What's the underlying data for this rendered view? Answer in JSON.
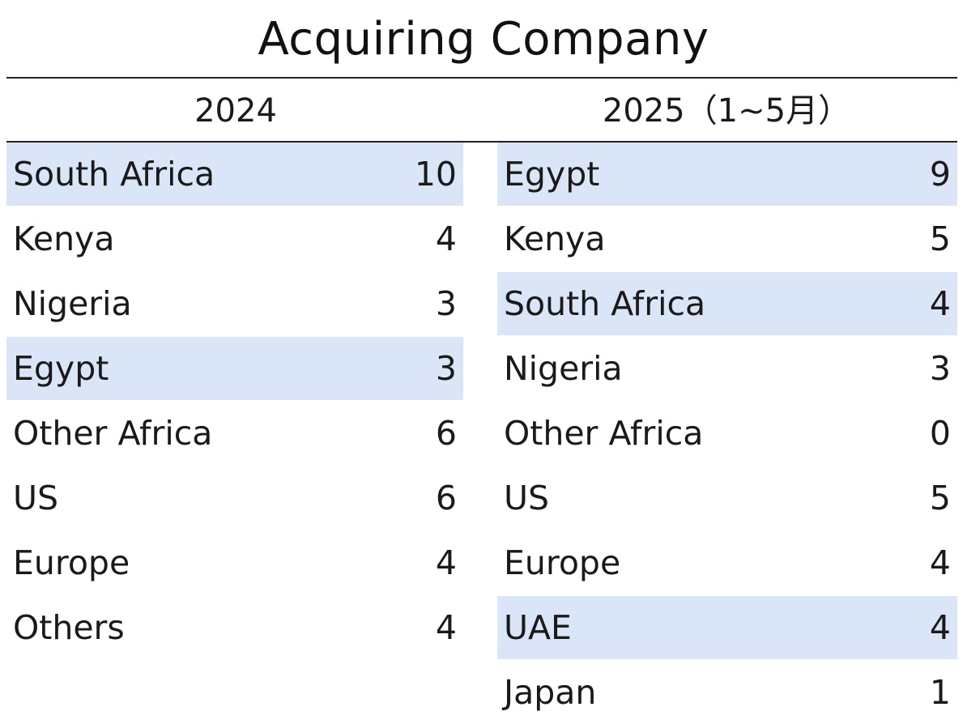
{
  "title": "Acquiring Company",
  "columns": [
    {
      "header": "2024",
      "rows": [
        {
          "name": "South Africa",
          "value": "10",
          "highlight": true
        },
        {
          "name": "Kenya",
          "value": "4",
          "highlight": false
        },
        {
          "name": "Nigeria",
          "value": "3",
          "highlight": false
        },
        {
          "name": "Egypt",
          "value": "3",
          "highlight": true
        },
        {
          "name": "Other Africa",
          "value": "6",
          "highlight": false
        },
        {
          "name": "US",
          "value": "6",
          "highlight": false
        },
        {
          "name": "Europe",
          "value": "4",
          "highlight": false
        },
        {
          "name": "Others",
          "value": "4",
          "highlight": false
        }
      ]
    },
    {
      "header": "2025（1~5月）",
      "rows": [
        {
          "name": "Egypt",
          "value": "9",
          "highlight": true
        },
        {
          "name": "Kenya",
          "value": "5",
          "highlight": false
        },
        {
          "name": "South Africa",
          "value": "4",
          "highlight": true
        },
        {
          "name": "Nigeria",
          "value": "3",
          "highlight": false
        },
        {
          "name": "Other Africa",
          "value": "0",
          "highlight": false
        },
        {
          "name": "US",
          "value": "5",
          "highlight": false
        },
        {
          "name": "Europe",
          "value": "4",
          "highlight": false
        },
        {
          "name": "UAE",
          "value": "4",
          "highlight": true
        },
        {
          "name": "Japan",
          "value": "1",
          "highlight": false
        }
      ]
    }
  ],
  "colors": {
    "highlight": "#dae6f7",
    "rule": "#222222",
    "text": "#1a1a1a"
  }
}
